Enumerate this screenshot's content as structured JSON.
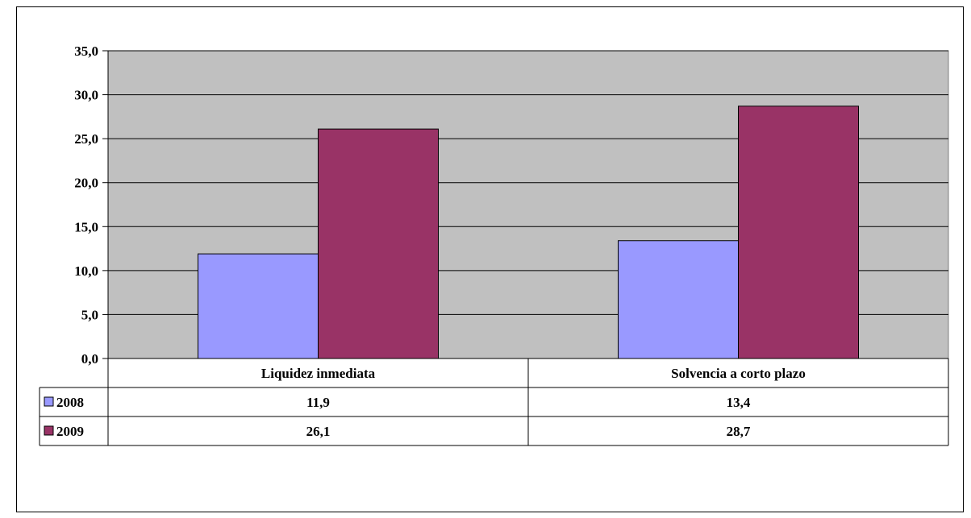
{
  "chart_data": {
    "type": "bar",
    "categories": [
      "Liquidez inmediata",
      "Solvencia a corto plazo"
    ],
    "series": [
      {
        "name": "2008",
        "values": [
          11.9,
          13.4
        ],
        "value_labels": [
          "11,9",
          "13,4"
        ],
        "color": "#9999FF"
      },
      {
        "name": "2009",
        "values": [
          26.1,
          28.7
        ],
        "value_labels": [
          "26,1",
          "28,7"
        ],
        "color": "#993366"
      }
    ],
    "ylim": [
      0,
      35
    ],
    "yticks": [
      "0,0",
      "5,0",
      "10,0",
      "15,0",
      "20,0",
      "25,0",
      "30,0",
      "35,0"
    ],
    "grid": true,
    "plot_background": "#C0C0C0",
    "legend": "data-table-left"
  }
}
